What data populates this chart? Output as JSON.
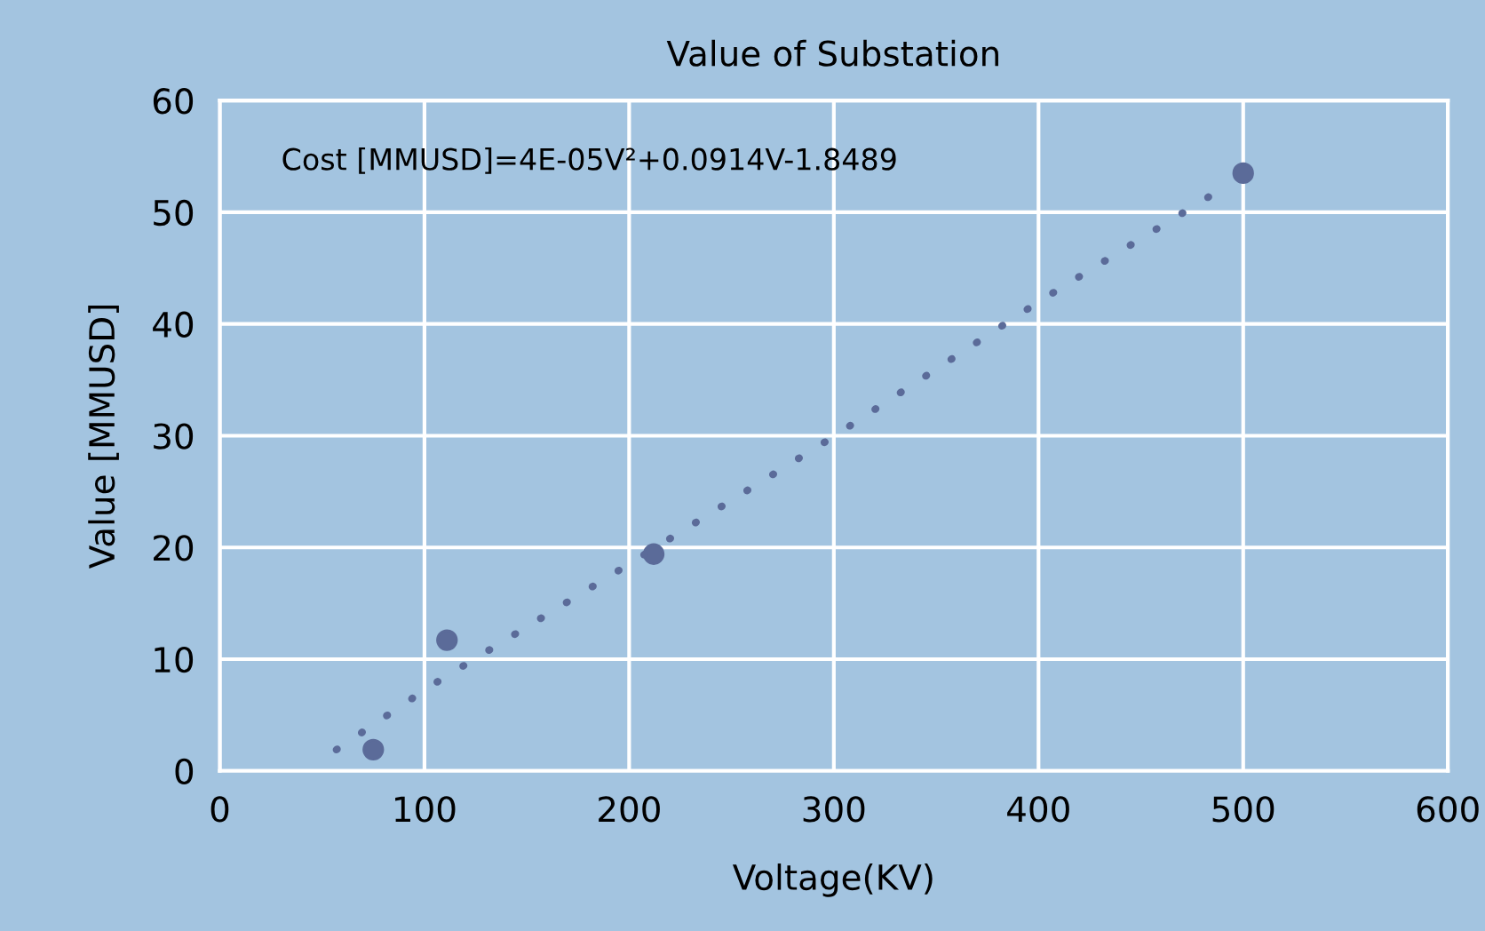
{
  "chart_data": {
    "type": "scatter",
    "title": "Value of Substation",
    "xlabel": "Voltage(KV)",
    "ylabel": "Value [MMUSD]",
    "series": [
      {
        "color": "#5b6b99",
        "marker": "circle",
        "x": [
          75,
          111,
          212,
          500
        ],
        "values": [
          1.9,
          11.7,
          19.4,
          53.5
        ]
      },
      {
        "type": "line",
        "color": "#5b6b99",
        "line_style": "dotted",
        "marker": "none",
        "x": [
          57,
          103,
          199,
          298,
          401,
          486
        ],
        "values": [
          1.9,
          7.6,
          18.4,
          29.7,
          42.1,
          51.7
        ]
      }
    ],
    "annotations": [
      "Cost [MMUSD]=4E-05V²+0.0914V-1.8489"
    ],
    "xlim": [
      0,
      600
    ],
    "xticks": [
      0,
      100,
      200,
      300,
      400,
      500,
      600
    ],
    "ylim": [
      0,
      60
    ],
    "yticks": [
      0,
      10,
      20,
      30,
      40,
      50,
      60
    ],
    "grid": true
  }
}
